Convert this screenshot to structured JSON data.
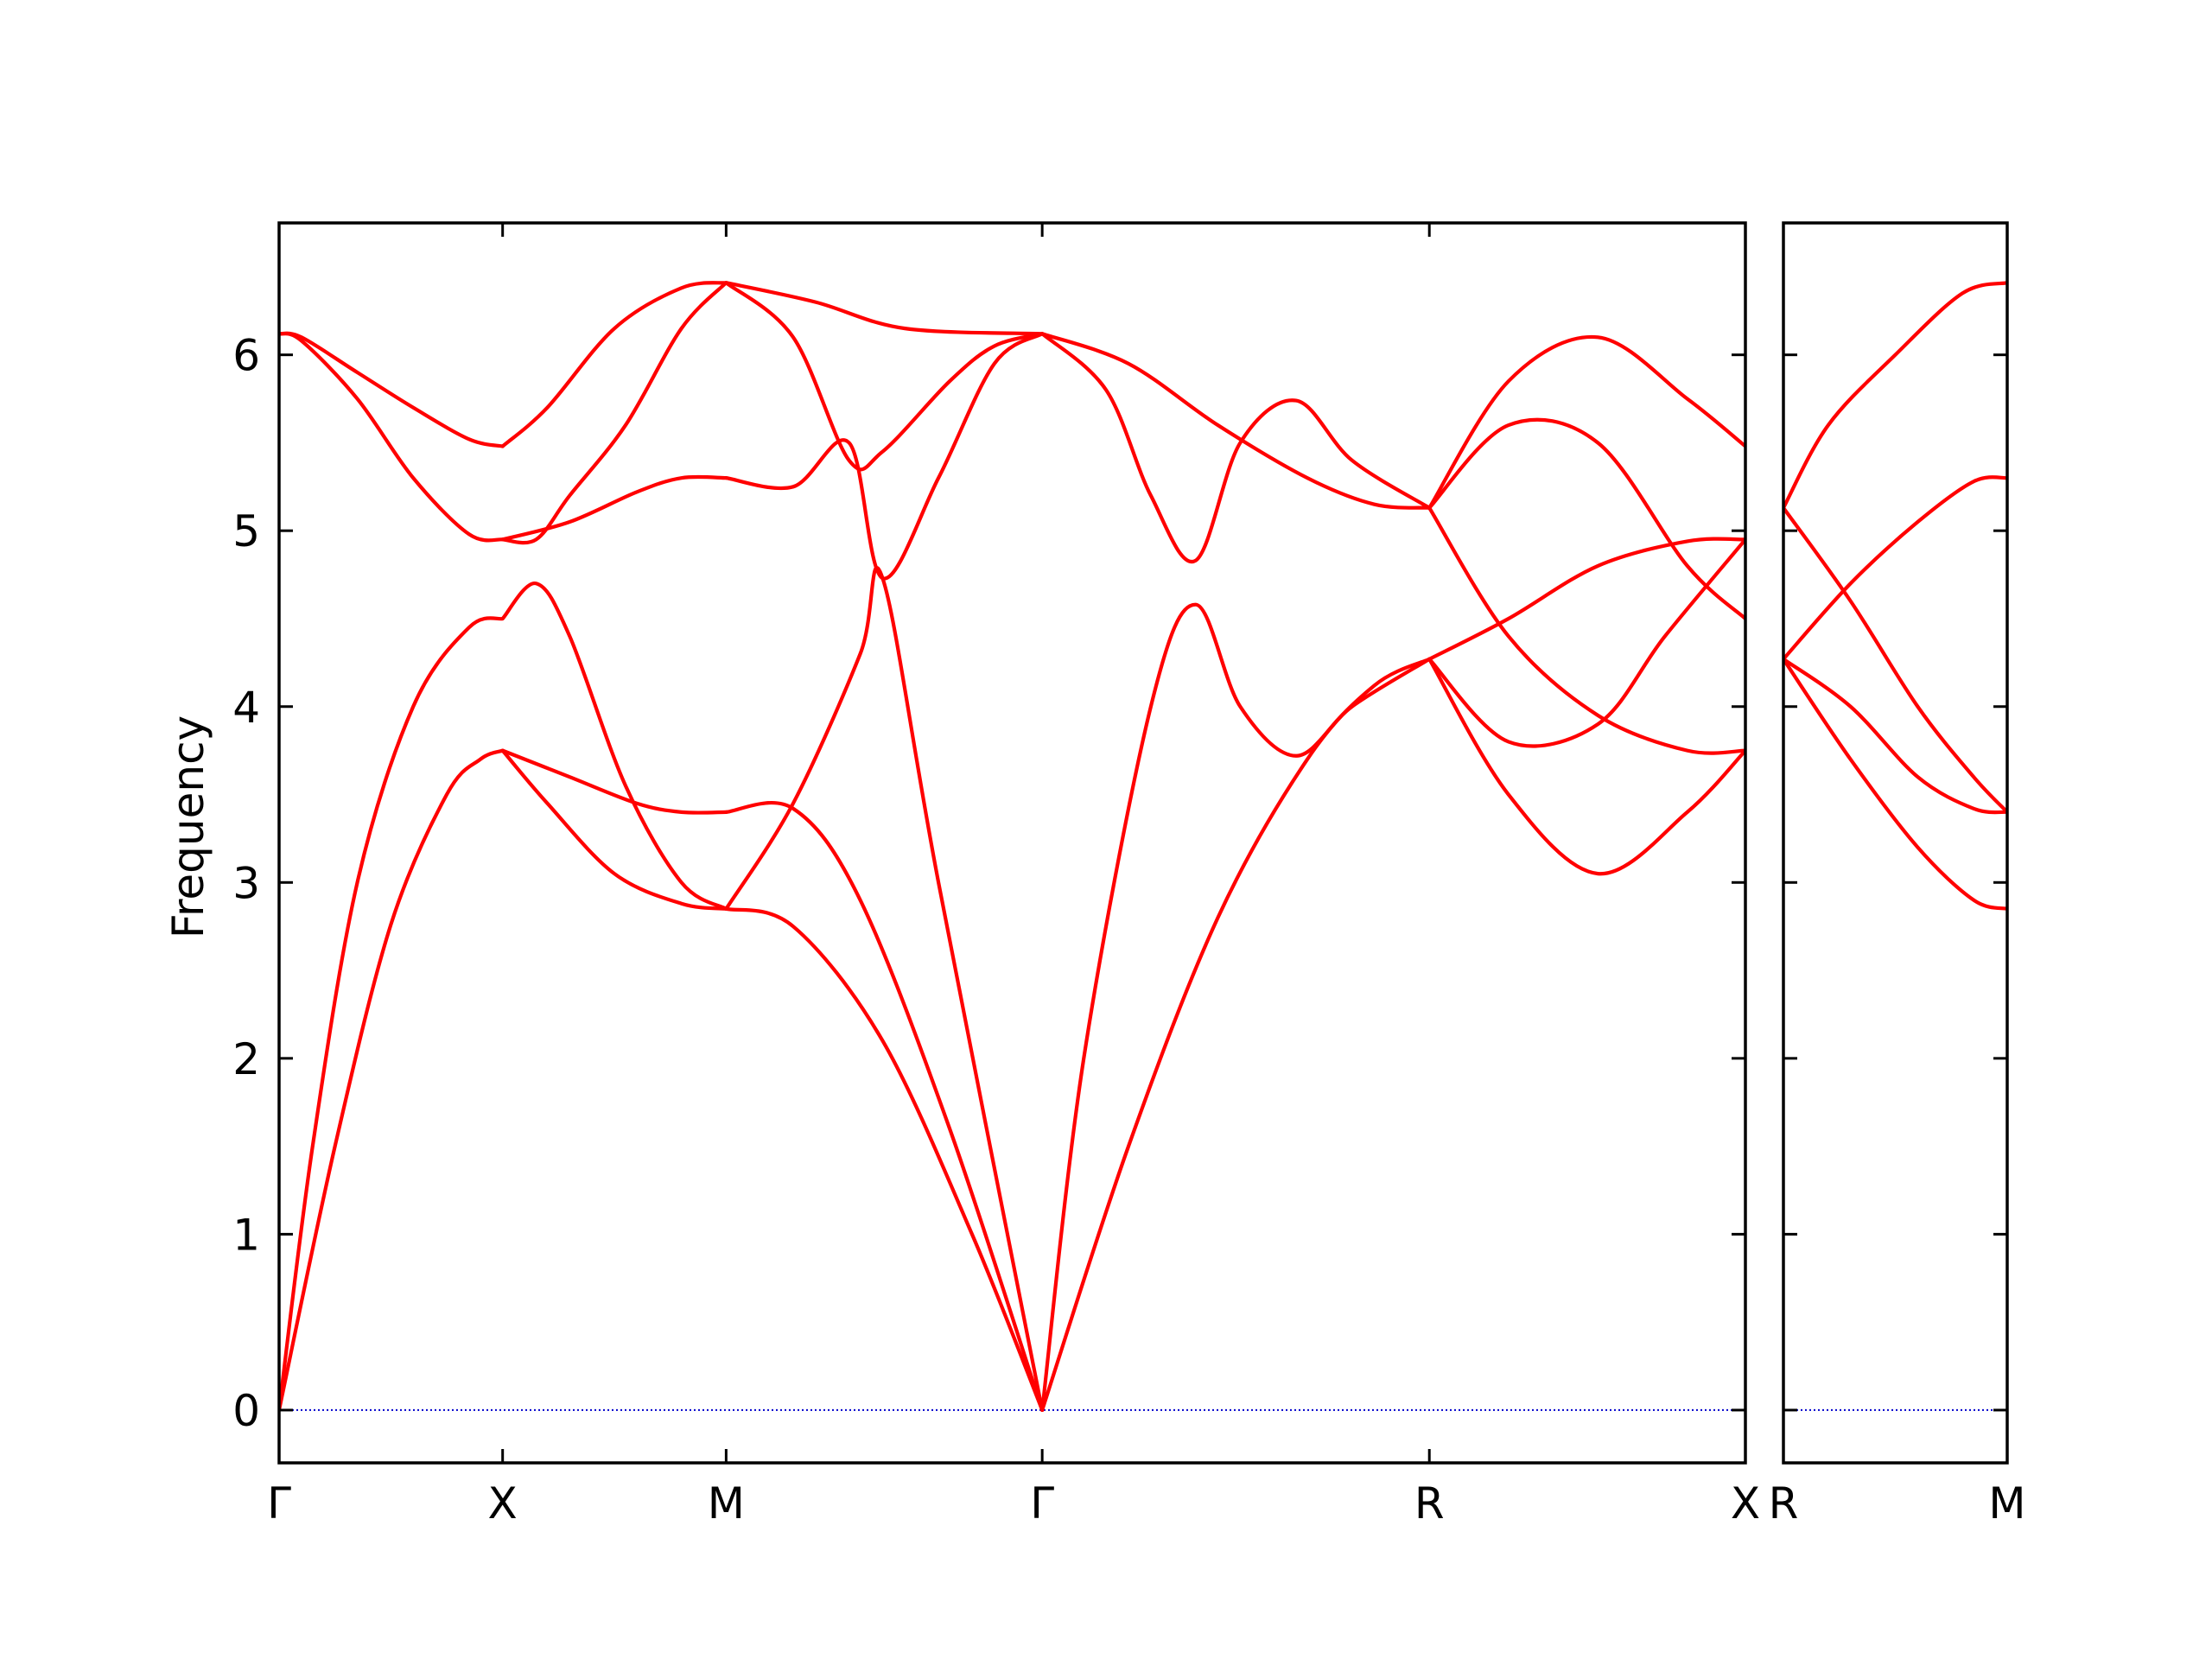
{
  "chart_data": {
    "type": "line",
    "title": "",
    "ylabel": "Frequency",
    "xlabel": "",
    "ylim": [
      -0.3,
      6.75
    ],
    "yticks": [
      0,
      1,
      2,
      3,
      4,
      5,
      6
    ],
    "line_color": "#ff0000",
    "zero_line_color": "#0000cc",
    "panels": [
      {
        "x_ticks": [
          {
            "label": "Γ",
            "x": 0
          },
          {
            "label": "X",
            "x": 1
          },
          {
            "label": "M",
            "x": 2
          },
          {
            "label": "Γ",
            "x": 3.414
          },
          {
            "label": "R",
            "x": 5.146
          },
          {
            "label": "X",
            "x": 6.56
          }
        ],
        "segments": [
          {
            "x": [
              0,
              1
            ],
            "bands": [
              [
                [
                  0,
                  0
                ],
                [
                  0.25,
                  1.5
                ],
                [
                  0.5,
                  2.76
                ],
                [
                  0.75,
                  3.5
                ],
                [
                  0.9,
                  3.7
                ],
                [
                  1,
                  3.75
                ]
              ],
              [
                [
                  0,
                  0
                ],
                [
                  0.15,
                  1.5
                ],
                [
                  0.35,
                  3.0
                ],
                [
                  0.6,
                  4.0
                ],
                [
                  0.85,
                  4.45
                ],
                [
                  1,
                  4.5
                ]
              ],
              [
                [
                  0,
                  6.12
                ],
                [
                  0.1,
                  6.08
                ],
                [
                  0.35,
                  5.75
                ],
                [
                  0.6,
                  5.3
                ],
                [
                  0.85,
                  4.98
                ],
                [
                  1,
                  4.95
                ]
              ],
              [
                [
                  0,
                  6.12
                ],
                [
                  0.1,
                  6.1
                ],
                [
                  0.35,
                  5.9
                ],
                [
                  0.6,
                  5.7
                ],
                [
                  0.85,
                  5.52
                ],
                [
                  1,
                  5.48
                ]
              ],
              [
                [
                  1,
                  4.95
                ],
                [
                  1,
                  4.95
                ]
              ]
            ]
          },
          {
            "x": [
              1,
              2
            ],
            "bands": [
              [
                [
                  1,
                  3.75
                ],
                [
                  1.2,
                  3.45
                ],
                [
                  1.5,
                  3.05
                ],
                [
                  1.8,
                  2.88
                ],
                [
                  2,
                  2.85
                ]
              ],
              [
                [
                  1,
                  3.75
                ],
                [
                  1.3,
                  3.6
                ],
                [
                  1.6,
                  3.45
                ],
                [
                  1.8,
                  3.4
                ],
                [
                  2,
                  3.4
                ]
              ],
              [
                [
                  1,
                  4.5
                ],
                [
                  1.15,
                  4.7
                ],
                [
                  1.3,
                  4.4
                ],
                [
                  1.55,
                  3.55
                ],
                [
                  1.8,
                  3.0
                ],
                [
                  2,
                  2.85
                ]
              ],
              [
                [
                  1,
                  4.95
                ],
                [
                  1.15,
                  4.95
                ],
                [
                  1.3,
                  5.2
                ],
                [
                  1.55,
                  5.6
                ],
                [
                  1.8,
                  6.15
                ],
                [
                  2,
                  6.41
                ]
              ],
              [
                [
                  1,
                  4.95
                ],
                [
                  1.3,
                  5.05
                ],
                [
                  1.6,
                  5.22
                ],
                [
                  1.8,
                  5.3
                ],
                [
                  2,
                  5.3
                ]
              ],
              [
                [
                  1,
                  5.48
                ],
                [
                  1.2,
                  5.7
                ],
                [
                  1.5,
                  6.15
                ],
                [
                  1.8,
                  6.38
                ],
                [
                  2,
                  6.41
                ]
              ]
            ]
          },
          {
            "x": [
              2,
              3.414
            ],
            "bands": [
              [
                [
                  2,
                  2.85
                ],
                [
                  2.3,
                  2.75
                ],
                [
                  2.7,
                  2.1
                ],
                [
                  3.1,
                  1.0
                ],
                [
                  3.414,
                  0
                ]
              ],
              [
                [
                  2,
                  3.4
                ],
                [
                  2.3,
                  3.42
                ],
                [
                  2.6,
                  2.9
                ],
                [
                  3.0,
                  1.6
                ],
                [
                  3.414,
                  0
                ]
              ],
              [
                [
                  2,
                  2.85
                ],
                [
                  2.3,
                  3.45
                ],
                [
                  2.6,
                  4.3
                ],
                [
                  2.7,
                  4.73
                ],
                [
                  2.95,
                  3.0
                ],
                [
                  3.414,
                  0
                ]
              ],
              [
                [
                  2,
                  5.3
                ],
                [
                  2.3,
                  5.25
                ],
                [
                  2.55,
                  5.5
                ],
                [
                  2.7,
                  4.73
                ],
                [
                  2.95,
                  5.3
                ],
                [
                  3.2,
                  5.95
                ],
                [
                  3.414,
                  6.12
                ]
              ],
              [
                [
                  2,
                  6.41
                ],
                [
                  2.3,
                  6.1
                ],
                [
                  2.55,
                  5.4
                ],
                [
                  2.7,
                  5.45
                ],
                [
                  3.0,
                  5.85
                ],
                [
                  3.2,
                  6.05
                ],
                [
                  3.414,
                  6.12
                ]
              ],
              [
                [
                  2,
                  6.41
                ],
                [
                  2.4,
                  6.3
                ],
                [
                  2.8,
                  6.15
                ],
                [
                  3.414,
                  6.12
                ]
              ]
            ]
          },
          {
            "x": [
              3.414,
              5.146
            ],
            "bands": [
              [
                [
                  3.414,
                  0
                ],
                [
                  3.8,
                  1.5
                ],
                [
                  4.2,
                  2.8
                ],
                [
                  4.6,
                  3.7
                ],
                [
                  4.9,
                  4.12
                ],
                [
                  5.146,
                  4.27
                ]
              ],
              [
                [
                  3.414,
                  0
                ],
                [
                  3.6,
                  2.0
                ],
                [
                  3.9,
                  4.0
                ],
                [
                  4.1,
                  4.58
                ],
                [
                  4.3,
                  4.0
                ],
                [
                  4.55,
                  3.72
                ],
                [
                  4.8,
                  4.0
                ],
                [
                  5.146,
                  4.27
                ]
              ],
              [
                [
                  3.414,
                  6.12
                ],
                [
                  3.7,
                  5.8
                ],
                [
                  3.9,
                  5.2
                ],
                [
                  4.1,
                  4.83
                ],
                [
                  4.3,
                  5.5
                ],
                [
                  4.55,
                  5.74
                ],
                [
                  4.8,
                  5.4
                ],
                [
                  5.146,
                  5.13
                ]
              ],
              [
                [
                  3.414,
                  6.12
                ],
                [
                  3.8,
                  5.95
                ],
                [
                  4.2,
                  5.6
                ],
                [
                  4.6,
                  5.3
                ],
                [
                  4.9,
                  5.15
                ],
                [
                  5.146,
                  5.13
                ]
              ]
            ]
          },
          {
            "x": [
              5.146,
              6.56
            ],
            "bands": [
              [
                [
                  5.146,
                  4.27
                ],
                [
                  5.5,
                  3.5
                ],
                [
                  5.9,
                  3.05
                ],
                [
                  6.3,
                  3.4
                ],
                [
                  6.56,
                  3.75
                ]
              ],
              [
                [
                  5.146,
                  4.27
                ],
                [
                  5.5,
                  3.8
                ],
                [
                  5.9,
                  3.9
                ],
                [
                  6.2,
                  4.4
                ],
                [
                  6.56,
                  4.95
                ]
              ],
              [
                [
                  5.146,
                  4.27
                ],
                [
                  5.5,
                  4.5
                ],
                [
                  5.9,
                  4.8
                ],
                [
                  6.3,
                  4.94
                ],
                [
                  6.56,
                  4.95
                ]
              ],
              [
                [
                  5.146,
                  5.13
                ],
                [
                  5.5,
                  4.4
                ],
                [
                  5.9,
                  3.95
                ],
                [
                  6.3,
                  3.75
                ],
                [
                  6.56,
                  3.75
                ]
              ],
              [
                [
                  5.146,
                  5.13
                ],
                [
                  5.5,
                  5.6
                ],
                [
                  5.9,
                  5.5
                ],
                [
                  6.3,
                  4.8
                ],
                [
                  6.56,
                  4.5
                ]
              ],
              [
                [
                  5.146,
                  5.13
                ],
                [
                  5.5,
                  5.85
                ],
                [
                  5.9,
                  6.1
                ],
                [
                  6.3,
                  5.75
                ],
                [
                  6.56,
                  5.48
                ]
              ]
            ]
          }
        ]
      },
      {
        "x_ticks": [
          {
            "label": "R",
            "x": 0
          },
          {
            "label": "M",
            "x": 1
          }
        ],
        "segments": [
          {
            "x": [
              0,
              1
            ],
            "bands": [
              [
                [
                  0,
                  4.27
                ],
                [
                  0.3,
                  3.7
                ],
                [
                  0.6,
                  3.2
                ],
                [
                  0.85,
                  2.9
                ],
                [
                  1,
                  2.85
                ]
              ],
              [
                [
                  0,
                  4.27
                ],
                [
                  0.3,
                  4.0
                ],
                [
                  0.6,
                  3.6
                ],
                [
                  0.85,
                  3.42
                ],
                [
                  1,
                  3.4
                ]
              ],
              [
                [
                  0,
                  5.13
                ],
                [
                  0.3,
                  4.6
                ],
                [
                  0.6,
                  4.0
                ],
                [
                  0.85,
                  3.6
                ],
                [
                  1,
                  3.4
                ]
              ],
              [
                [
                  0,
                  4.27
                ],
                [
                  0.3,
                  4.7
                ],
                [
                  0.6,
                  5.05
                ],
                [
                  0.85,
                  5.28
                ],
                [
                  1,
                  5.3
                ]
              ],
              [
                [
                  0,
                  5.13
                ],
                [
                  0.2,
                  5.6
                ],
                [
                  0.5,
                  6.0
                ],
                [
                  0.8,
                  6.35
                ],
                [
                  1,
                  6.41
                ]
              ]
            ]
          }
        ]
      }
    ]
  }
}
